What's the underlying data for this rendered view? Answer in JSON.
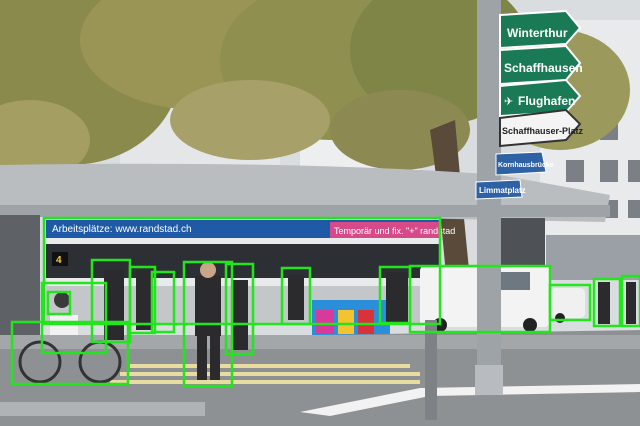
{
  "signs": {
    "winterthur": "Winterthur",
    "schaffhausen": "Schaffhausen",
    "flughafen": "Flughafen",
    "schaffhauser_platz": "Schaffhauser-Platz",
    "kornhausbruecke": "Kornhausbrücke",
    "limmatplatz": "Limmatplatz"
  },
  "tram": {
    "ad_left": "Arbeitsplätze: www.randstad.ch",
    "ad_right": "Temporär und fix. \"+\" randstad",
    "route_number": "4"
  },
  "detections": {
    "box_color": "#22e51c",
    "count": 15
  },
  "colors": {
    "sign_green": "#1a7a55",
    "sign_blue": "#2f62a5",
    "tram_blue": "#1f5aa6"
  }
}
